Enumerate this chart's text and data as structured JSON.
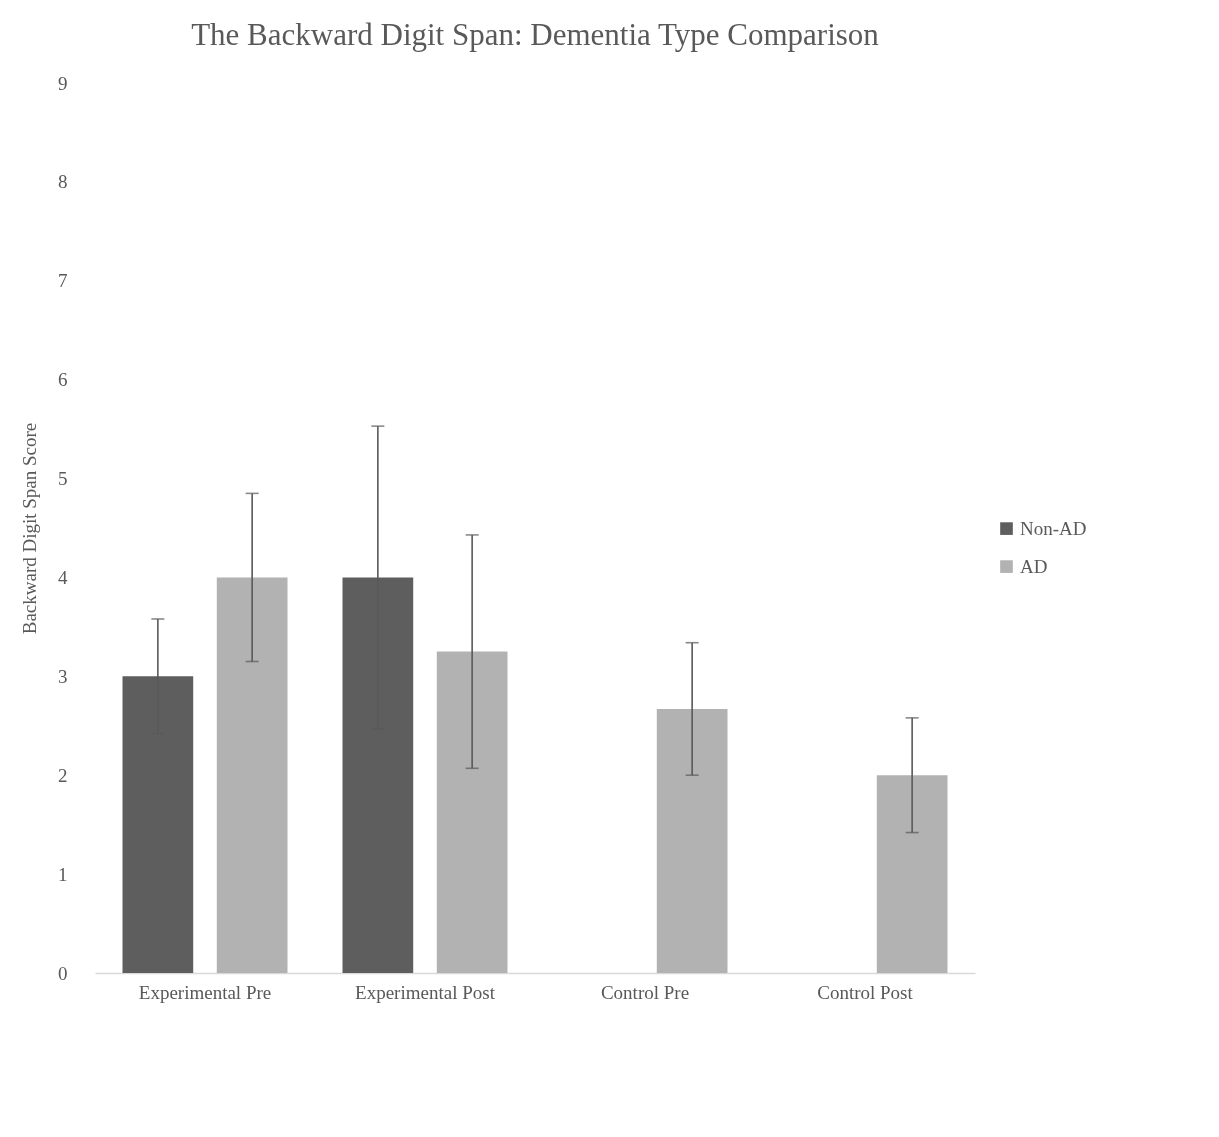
{
  "chart_data": {
    "type": "bar",
    "title": "The Backward Digit Span: Dementia Type Comparison",
    "ylabel": "Backward Digit Span Score",
    "categories": [
      "Experimental Pre",
      "Experimental Post",
      "Control Pre",
      "Control Post"
    ],
    "series": [
      {
        "name": "Non-AD",
        "color": "#5e5e5e",
        "values": [
          3,
          4,
          0,
          0
        ],
        "errors": [
          0.58,
          1.53,
          null,
          null
        ]
      },
      {
        "name": "AD",
        "color": "#b2b2b2",
        "values": [
          4,
          3.25,
          2.67,
          2
        ],
        "errors": [
          0.85,
          1.18,
          0.67,
          0.58
        ]
      }
    ],
    "ylim": [
      0,
      9
    ],
    "yticks": [
      0,
      1,
      2,
      3,
      4,
      5,
      6,
      7,
      8,
      9
    ],
    "grid": false,
    "legend": "right"
  }
}
